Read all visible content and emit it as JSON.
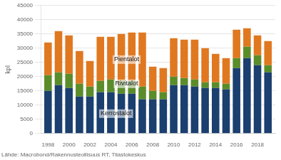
{
  "chart_data": {
    "type": "bar",
    "stacked": true,
    "ylabel": "kpl",
    "subtitle": "Lähde: Macrobond/Rakennusteollisuus RT, Tilastokeskus",
    "x": [
      1998,
      1999,
      2000,
      2001,
      2002,
      2003,
      2004,
      2005,
      2006,
      2007,
      2008,
      2009,
      2010,
      2011,
      2012,
      2013,
      2014,
      2015,
      2016,
      2017,
      2018,
      2019
    ],
    "xlim": [
      1997.3,
      2019.7
    ],
    "xticks": [
      1998,
      2000,
      2002,
      2004,
      2006,
      2008,
      2010,
      2012,
      2014,
      2016,
      2018
    ],
    "series": [
      {
        "name": "Kerrostalot",
        "color": "#1b3f6e",
        "values": [
          15000,
          17000,
          16000,
          13000,
          13000,
          14500,
          14500,
          14000,
          14000,
          12000,
          12000,
          12000,
          17000,
          17000,
          16500,
          16000,
          16000,
          15500,
          23000,
          26500,
          24000,
          21500
        ]
      },
      {
        "name": "Rivitalot",
        "color": "#5b8c2a",
        "values": [
          5500,
          4500,
          5000,
          4500,
          3500,
          4000,
          4500,
          4500,
          4500,
          4500,
          3000,
          2500,
          3000,
          2500,
          2500,
          2000,
          2000,
          2000,
          3500,
          4000,
          3500,
          2500
        ]
      },
      {
        "name": "Pientalot",
        "color": "#e07820",
        "values": [
          11500,
          14500,
          13500,
          11500,
          9000,
          15500,
          15000,
          16500,
          17000,
          19000,
          8500,
          8500,
          13500,
          13500,
          14000,
          12000,
          10000,
          9000,
          10000,
          6500,
          7000,
          8500
        ]
      }
    ],
    "ylim": [
      0,
      45000
    ],
    "yticks": [
      0,
      5000,
      10000,
      15000,
      20000,
      25000,
      30000,
      35000,
      40000,
      45000
    ],
    "grid": true,
    "annotations": [
      {
        "text": "Pientalot",
        "x": 2005.5,
        "y": 26000
      },
      {
        "text": "Rivitalot",
        "x": 2005.5,
        "y": 17500
      },
      {
        "text": "Kerrostalot",
        "x": 2004.5,
        "y": 7000
      }
    ]
  }
}
